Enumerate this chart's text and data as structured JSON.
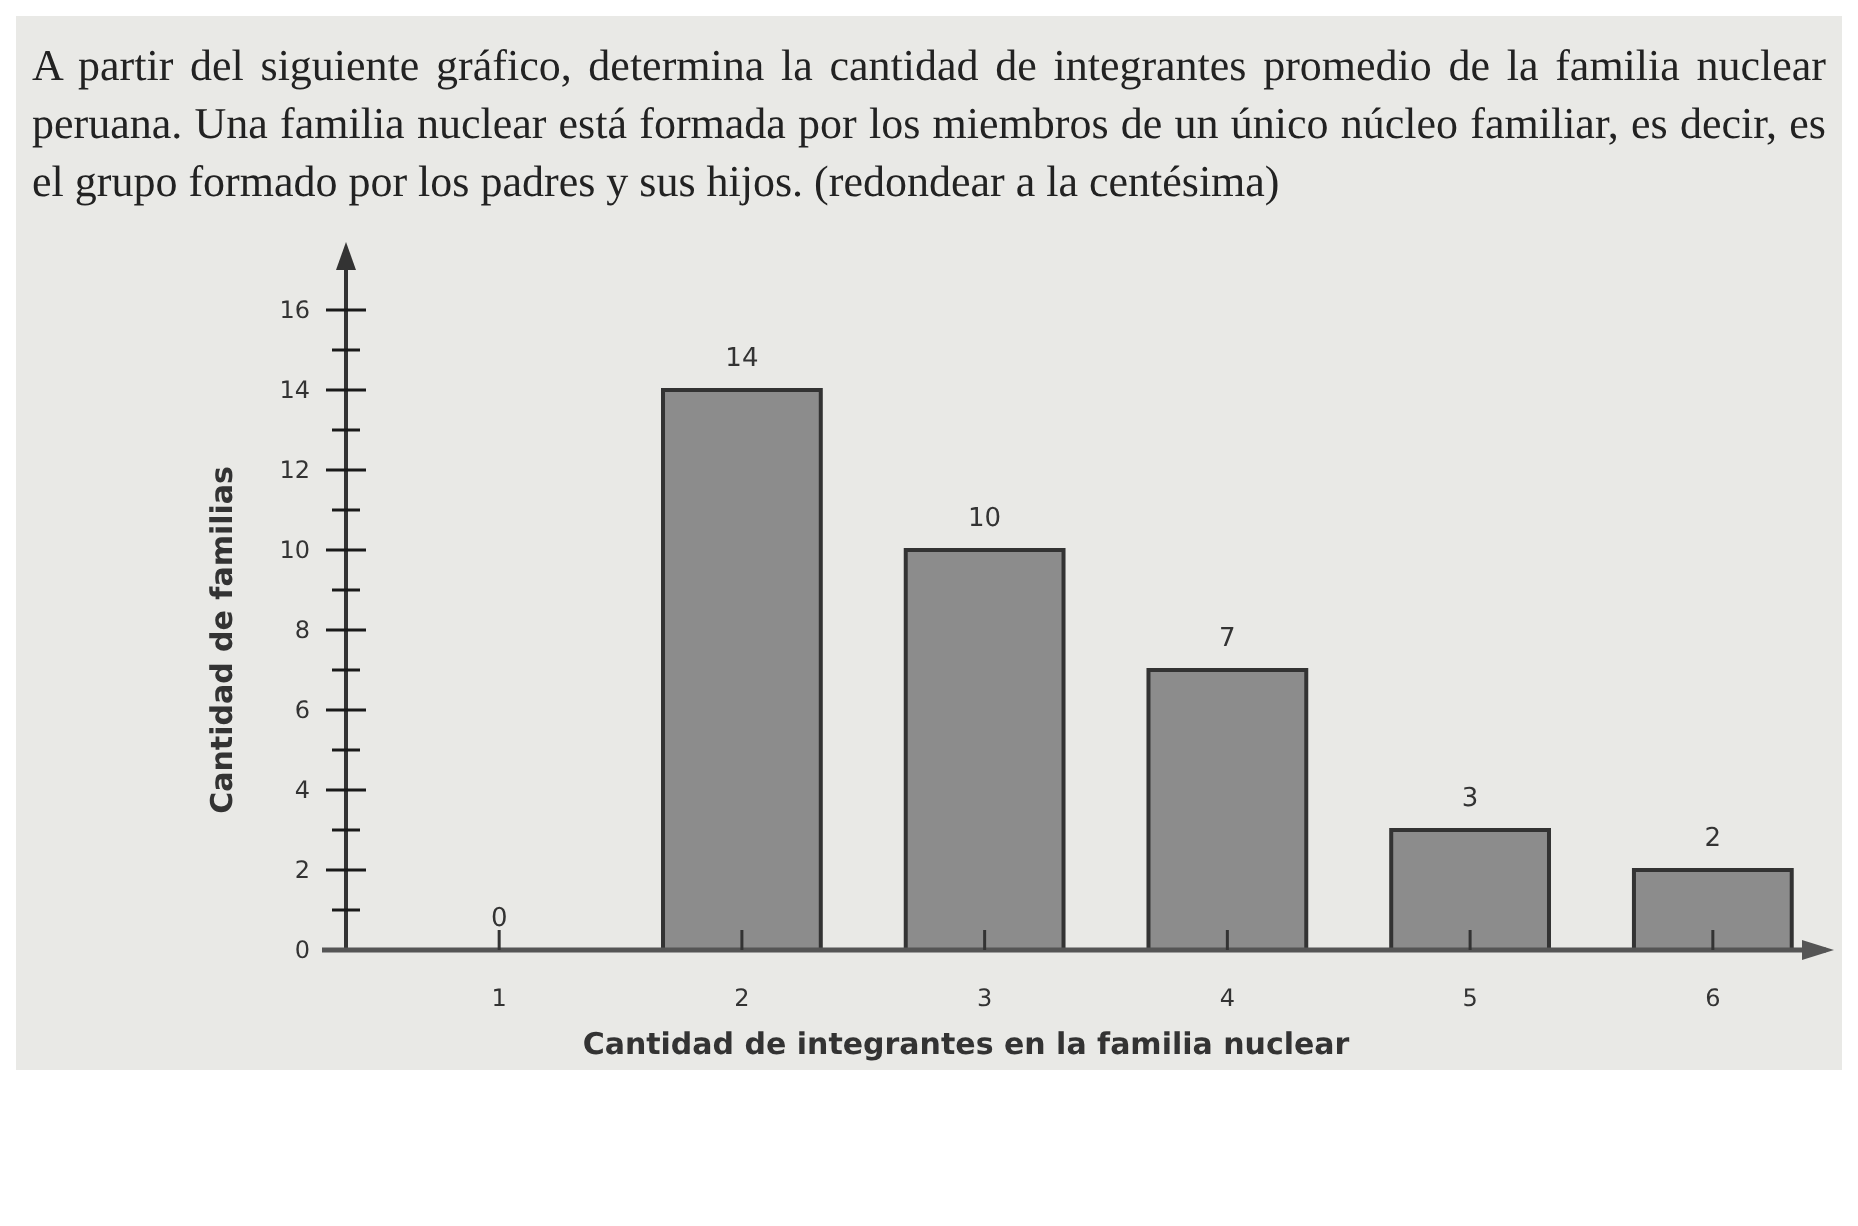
{
  "chart_data": {
    "type": "bar",
    "title": "A partir del siguiente gráfico, determina la cantidad de integrantes promedio de la familia nuclear peruana. Una familia nuclear está formada por los miembros de un único núcleo familiar, es decir, es el grupo formado por los padres y sus hijos. (redondear a la centésima)",
    "xlabel": "Cantidad de integrantes en la familia nuclear",
    "ylabel": "Cantidad de familias",
    "categories": [
      "1",
      "2",
      "3",
      "4",
      "5",
      "6"
    ],
    "values": [
      0,
      14,
      10,
      7,
      3,
      2
    ],
    "color": "#8c8c8c",
    "data_labels": true,
    "ylim": [
      0,
      17.5
    ],
    "yticks": [
      0,
      2,
      4,
      6,
      8,
      10,
      12,
      14,
      16
    ],
    "grid": false
  }
}
